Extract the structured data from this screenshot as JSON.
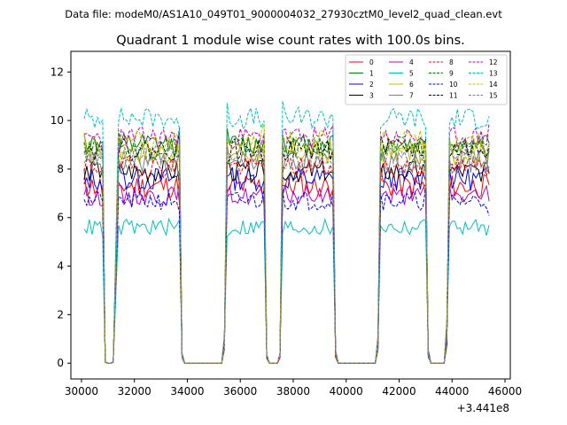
{
  "header": {
    "filename_text": "Data file: modeM0/AS1A10_049T01_9000004032_27930cztM0_level2_quad_clean.evt"
  },
  "chart_data": {
    "type": "line",
    "title": "Quadrant 1 module wise count rates with 100.0s bins.",
    "xlabel": "",
    "ylabel": "",
    "xlim": [
      29600,
      46200
    ],
    "ylim": [
      -0.65,
      12.85
    ],
    "x_offset_label": "+3.441e8",
    "x_ticks": [
      30000,
      32000,
      34000,
      36000,
      38000,
      40000,
      42000,
      44000,
      46000
    ],
    "x_tick_labels": [
      "30000",
      "32000",
      "34000",
      "36000",
      "38000",
      "40000",
      "42000",
      "44000",
      "46000"
    ],
    "y_ticks": [
      0,
      2,
      4,
      6,
      8,
      10,
      12
    ],
    "y_tick_labels": [
      "0",
      "2",
      "4",
      "6",
      "8",
      "10",
      "12"
    ],
    "grid": false,
    "legend_position": "top-right",
    "bin_size_s": 100,
    "on_segments": [
      [
        30100,
        30800
      ],
      [
        31400,
        33700
      ],
      [
        35500,
        36900
      ],
      [
        37600,
        39500
      ],
      [
        41300,
        43000
      ],
      [
        43900,
        45400
      ]
    ],
    "gap_points": [
      [
        30900,
        0.05
      ],
      [
        31000,
        0
      ],
      [
        31100,
        0
      ],
      [
        31200,
        0.05
      ],
      [
        33800,
        0.3
      ],
      [
        33900,
        0
      ],
      [
        34500,
        0
      ],
      [
        35100,
        0
      ],
      [
        35200,
        0
      ],
      [
        35300,
        0
      ],
      [
        35400,
        0.8
      ],
      [
        37000,
        0.3
      ],
      [
        37100,
        0
      ],
      [
        37400,
        0
      ],
      [
        37500,
        0.3
      ],
      [
        39600,
        0.4
      ],
      [
        39700,
        0
      ],
      [
        40500,
        0
      ],
      [
        41100,
        0
      ],
      [
        41200,
        0.8
      ],
      [
        43100,
        0.4
      ],
      [
        43200,
        0
      ],
      [
        43600,
        0
      ],
      [
        43700,
        0
      ],
      [
        43800,
        1.2
      ]
    ],
    "series": [
      {
        "name": "0",
        "color": "#ff0000",
        "dash": false,
        "level": 7.3,
        "amp": 0.5,
        "seed": 11
      },
      {
        "name": "1",
        "color": "#008000",
        "dash": false,
        "level": 9.0,
        "amp": 0.45,
        "seed": 12
      },
      {
        "name": "2",
        "color": "#0000ff",
        "dash": false,
        "level": 7.6,
        "amp": 0.5,
        "seed": 13
      },
      {
        "name": "3",
        "color": "#000000",
        "dash": false,
        "level": 7.9,
        "amp": 0.45,
        "seed": 14
      },
      {
        "name": "4",
        "color": "#bf00bf",
        "dash": false,
        "level": 6.9,
        "amp": 0.4,
        "seed": 15
      },
      {
        "name": "5",
        "color": "#00bfbf",
        "dash": false,
        "level": 5.6,
        "amp": 0.35,
        "seed": 16
      },
      {
        "name": "6",
        "color": "#bfbf00",
        "dash": false,
        "level": 8.7,
        "amp": 0.5,
        "seed": 17
      },
      {
        "name": "7",
        "color": "#808080",
        "dash": false,
        "level": 8.3,
        "amp": 0.5,
        "seed": 18
      },
      {
        "name": "8",
        "color": "#ff0000",
        "dash": true,
        "level": 8.1,
        "amp": 0.45,
        "seed": 19
      },
      {
        "name": "9",
        "color": "#008000",
        "dash": true,
        "level": 8.9,
        "amp": 0.45,
        "seed": 20
      },
      {
        "name": "10",
        "color": "#0000ff",
        "dash": true,
        "level": 6.7,
        "amp": 0.4,
        "seed": 21
      },
      {
        "name": "11",
        "color": "#000000",
        "dash": true,
        "level": 8.8,
        "amp": 0.45,
        "seed": 22
      },
      {
        "name": "12",
        "color": "#bf00bf",
        "dash": true,
        "level": 9.3,
        "amp": 0.45,
        "seed": 23
      },
      {
        "name": "13",
        "color": "#00bfbf",
        "dash": true,
        "level": 10.1,
        "amp": 0.45,
        "seed": 24
      },
      {
        "name": "14",
        "color": "#bfbf00",
        "dash": true,
        "level": 9.1,
        "amp": 0.5,
        "seed": 25
      },
      {
        "name": "15",
        "color": "#808080",
        "dash": true,
        "level": 8.5,
        "amp": 0.45,
        "seed": 26
      }
    ]
  }
}
